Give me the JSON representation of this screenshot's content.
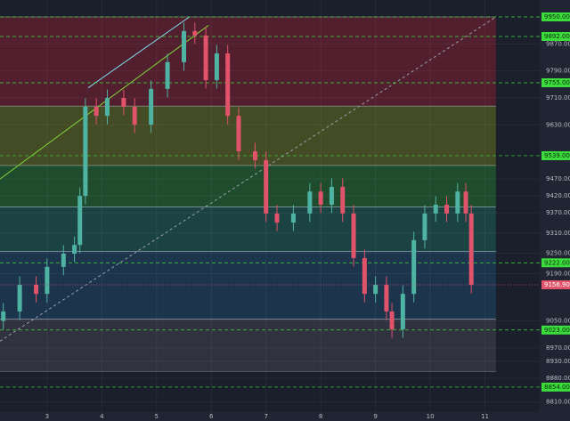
{
  "chart_data": {
    "type": "candlestick",
    "x": [
      2.2,
      2.5,
      2.8,
      3.0,
      3.3,
      3.5,
      3.6,
      3.7,
      3.9,
      4.1,
      4.4,
      4.6,
      4.9,
      5.2,
      5.5,
      5.7,
      5.9,
      6.1,
      6.3,
      6.5,
      6.8,
      7.0,
      7.2,
      7.5,
      7.8,
      8.0,
      8.2,
      8.4,
      8.6,
      8.8,
      9.0,
      9.2,
      9.3,
      9.5,
      9.7,
      9.9,
      10.1,
      10.3,
      10.5,
      10.65,
      10.75
    ],
    "open": [
      9050,
      9078,
      9157,
      9130,
      9210,
      9249,
      9275,
      9420,
      9684,
      9657,
      9710,
      9684,
      9631,
      9737,
      9816,
      9908,
      9895,
      9763,
      9842,
      9657,
      9552,
      9526,
      9368,
      9341,
      9368,
      9433,
      9394,
      9447,
      9368,
      9236,
      9130,
      9157,
      9078,
      9025,
      9130,
      9289,
      9368,
      9394,
      9368,
      9433,
      9368
    ],
    "high": [
      9103,
      9182,
      9182,
      9235,
      9274,
      9300,
      9445,
      9709,
      9709,
      9735,
      9735,
      9709,
      9762,
      9841,
      9933,
      9933,
      9920,
      9867,
      9867,
      9682,
      9577,
      9551,
      9393,
      9393,
      9458,
      9458,
      9472,
      9472,
      9393,
      9261,
      9182,
      9182,
      9103,
      9155,
      9314,
      9393,
      9419,
      9419,
      9458,
      9458,
      9393
    ],
    "low": [
      9025,
      9053,
      9105,
      9105,
      9185,
      9224,
      9250,
      9395,
      9632,
      9632,
      9659,
      9606,
      9606,
      9712,
      9791,
      9870,
      9738,
      9738,
      9632,
      9527,
      9501,
      9343,
      9316,
      9316,
      9343,
      9369,
      9369,
      9343,
      9211,
      9105,
      9105,
      9053,
      9000,
      9000,
      9105,
      9264,
      9343,
      9343,
      9343,
      9343,
      9131
    ],
    "close": [
      9078,
      9157,
      9130,
      9210,
      9249,
      9275,
      9420,
      9684,
      9657,
      9710,
      9684,
      9631,
      9737,
      9816,
      9908,
      9895,
      9763,
      9842,
      9657,
      9552,
      9526,
      9368,
      9341,
      9368,
      9433,
      9394,
      9447,
      9368,
      9236,
      9130,
      9157,
      9078,
      9025,
      9130,
      9289,
      9368,
      9394,
      9368,
      9433,
      9368,
      9156.9
    ],
    "up_color": "#4fb3a3",
    "down_color": "#e0536a",
    "xlim": [
      2.14,
      12.0
    ],
    "ylim": [
      8780,
      10000
    ],
    "xticks": [
      3,
      4,
      5,
      6,
      7,
      8,
      9,
      10,
      11
    ],
    "yticks": [
      {
        "value": 9870,
        "label": "9870.00"
      },
      {
        "value": 9790,
        "label": "9790.00"
      },
      {
        "value": 9710,
        "label": "9710.00"
      },
      {
        "value": 9630,
        "label": "9630.00"
      },
      {
        "value": 9470,
        "label": "9470.00"
      },
      {
        "value": 9420,
        "label": "9420.00"
      },
      {
        "value": 9370,
        "label": "9370.00"
      },
      {
        "value": 9310,
        "label": "9310.00"
      },
      {
        "value": 9250,
        "label": "9250.00"
      },
      {
        "value": 9190,
        "label": "9190.00"
      },
      {
        "value": 9050,
        "label": "9050.00"
      },
      {
        "value": 8970,
        "label": "8970.00"
      },
      {
        "value": 8930,
        "label": "8930.00"
      },
      {
        "value": 8880,
        "label": "8880.00"
      },
      {
        "value": 8810,
        "label": "8810.00"
      }
    ],
    "grid": true,
    "zones": [
      {
        "from": 9950,
        "to": 9686,
        "color": "rgba(150,30,50,0.45)"
      },
      {
        "from": 9686,
        "to": 9510,
        "color": "rgba(120,130,30,0.45)"
      },
      {
        "from": 9510,
        "to": 9387,
        "color": "rgba(40,130,50,0.45)"
      },
      {
        "from": 9387,
        "to": 9256,
        "color": "rgba(30,110,100,0.45)"
      },
      {
        "from": 9256,
        "to": 9055,
        "color": "rgba(30,80,120,0.45)"
      },
      {
        "from": 9055,
        "to": 8900,
        "color": "rgba(90,90,100,0.35)"
      }
    ],
    "zone_end": 11.2,
    "levels": [
      {
        "value": 9950,
        "label": "9950.00"
      },
      {
        "value": 9892,
        "label": "9892.00"
      },
      {
        "value": 9755,
        "label": "9755.00"
      },
      {
        "value": 9539,
        "label": "9539.00"
      },
      {
        "value": 9222,
        "label": "9222.00"
      },
      {
        "value": 9023,
        "label": "9023.00"
      },
      {
        "value": 8854,
        "label": "8854.00"
      }
    ],
    "level_color": "#3ddc3d",
    "trendlines": [
      {
        "x": [
          3.75,
          5.6
        ],
        "y": [
          9740,
          9950
        ],
        "color": "#7fe0f0",
        "dashed": false
      },
      {
        "x": [
          2.14,
          5.95
        ],
        "y": [
          9470,
          9925
        ],
        "color": "#7fd63a",
        "dashed": false
      },
      {
        "x": [
          2.14,
          11.2
        ],
        "y": [
          8990,
          9950
        ],
        "color": "#9aa0aa",
        "dashed": true
      }
    ],
    "last_price": {
      "value": 9156.9,
      "label": "9156.90"
    }
  }
}
